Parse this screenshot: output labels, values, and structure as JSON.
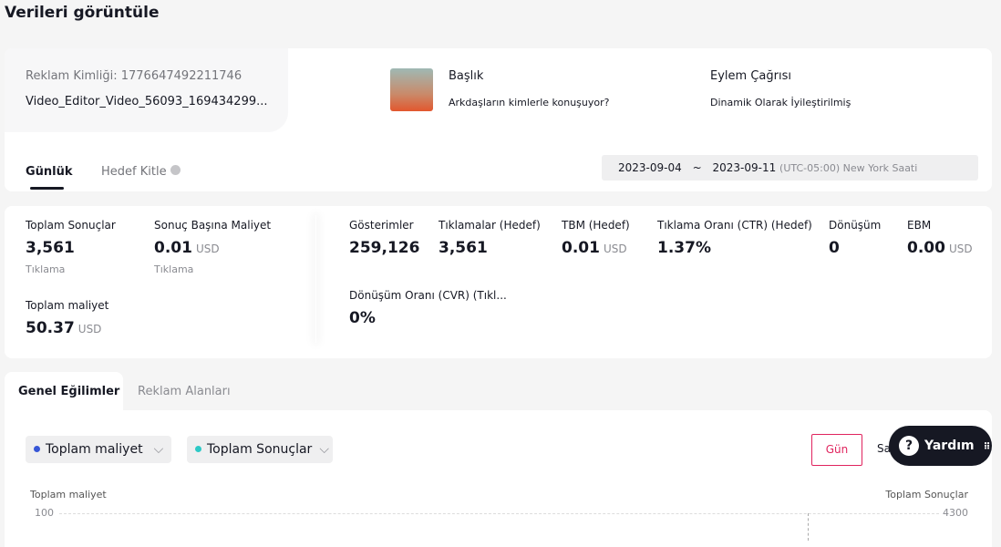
{
  "header": {
    "title": "Verileri görüntüle"
  },
  "ad": {
    "id_label": "Reklam Kimliği: 1776647492211746",
    "name": "Video_Editor_Video_56093_169434299...",
    "headline_label": "Başlık",
    "headline": "Arkdaşların kimlerle konuşuyor?",
    "cta_label": "Eylem Çağrısı",
    "cta": "Dinamik Olarak İyileştirilmiş"
  },
  "tabs": [
    "Günlük",
    "Hedef Kitle"
  ],
  "date_range": {
    "start": "2023-09-04",
    "separator": "~",
    "end": "2023-09-11",
    "timezone": "(UTC-05:00) New York Saati"
  },
  "metrics": [
    {
      "label": "Toplam Sonuçlar",
      "value": "3,561",
      "sub": "Tıklama"
    },
    {
      "label": "Sonuç Başına Maliyet",
      "value": "0.01",
      "unit": "USD",
      "sub": "Tıklama"
    },
    {
      "label": "Toplam maliyet",
      "value": "50.37",
      "unit": "USD"
    },
    {
      "label": "Gösterimler",
      "value": "259,126"
    },
    {
      "label": "Tıklamalar (Hedef)",
      "value": "3,561"
    },
    {
      "label": "TBM (Hedef)",
      "value": "0.01",
      "unit": "USD"
    },
    {
      "label": "Tıklama Oranı (CTR) (Hedef)",
      "value": "1.37%"
    },
    {
      "label": "Dönüşüm",
      "value": "0"
    },
    {
      "label": "EBM",
      "value": "0.00",
      "unit": "USD"
    },
    {
      "label": "Dönüşüm Oranı (CVR) (Tıkl...",
      "value": "0%"
    }
  ],
  "trend_tabs": [
    "Genel Eğilimler",
    "Reklam Alanları"
  ],
  "selectors": [
    "Toplam maliyet",
    "Toplam Sonuçlar"
  ],
  "granularity": [
    "Gün",
    "Sa"
  ],
  "help": "Yardım",
  "chart": {
    "left_axis_title": "Toplam maliyet",
    "left_top": "100",
    "right_axis_title": "Toplam Sonuçlar",
    "right_top": "4300"
  }
}
